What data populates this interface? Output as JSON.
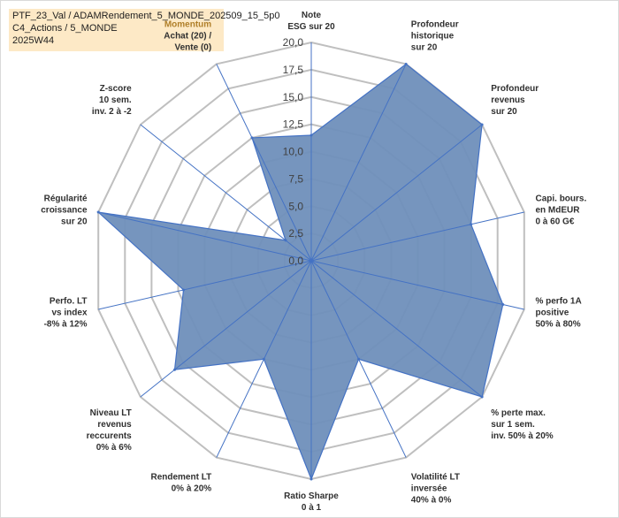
{
  "header": {
    "lines": [
      "PTF_23_Val / ADAMRendement_5_MONDE_202509_15_5p0",
      "C4_Actions / 5_MONDE",
      "2025W44"
    ]
  },
  "chart_data": {
    "type": "radar",
    "rlim": [
      0,
      20
    ],
    "ticks": [
      "0,0",
      "2,5",
      "5,0",
      "7,5",
      "10,0",
      "12,5",
      "15,0",
      "17,5",
      "20,0"
    ],
    "tick_values": [
      0,
      2.5,
      5,
      7.5,
      10,
      12.5,
      15,
      17.5,
      20
    ],
    "grid": true,
    "colors": {
      "fill": "#6f8fba",
      "stroke": "#4472c4",
      "grid": "#bfbfbf",
      "spoke": "#4472c4",
      "highlight_label": "#b07f29"
    },
    "axes": [
      {
        "label": [
          "Note",
          "ESG sur 20"
        ],
        "value": 11.5
      },
      {
        "label": [
          "Profondeur",
          "historique",
          "sur 20"
        ],
        "value": 20
      },
      {
        "label": [
          "Profondeur",
          "revenus",
          "sur 20"
        ],
        "value": 20
      },
      {
        "label": [
          "Capi. bours.",
          "en MdEUR",
          "0 à 60 G€"
        ],
        "value": 15
      },
      {
        "label": [
          "% perfo 1A",
          "positive",
          "50% à 80%"
        ],
        "value": 18
      },
      {
        "label": [
          "% perte max.",
          "sur 1 sem.",
          "inv. 50% à 20%"
        ],
        "value": 20
      },
      {
        "label": [
          "Volatilité LT",
          "inversée",
          "40% à 0%"
        ],
        "value": 10
      },
      {
        "label": [
          "Ratio Sharpe",
          "0 à 1"
        ],
        "value": 20
      },
      {
        "label": [
          "Rendement LT",
          "0% à 20%"
        ],
        "value": 10
      },
      {
        "label": [
          "Niveau LT",
          "revenus",
          "reccurents",
          "0% à 6%"
        ],
        "value": 16
      },
      {
        "label": [
          "Perfo. LT",
          "vs index",
          "-8% à 12%"
        ],
        "value": 12
      },
      {
        "label": [
          "Régularité",
          "croissance",
          "sur 20"
        ],
        "value": 20
      },
      {
        "label": [
          "Z-score",
          "10 sem.",
          "inv. 2 à -2"
        ],
        "value": 3
      },
      {
        "label": [
          "Momentum",
          "Achat (20) /",
          "Vente (0)"
        ],
        "value": 12.5,
        "highlight_first_line": true
      }
    ]
  }
}
